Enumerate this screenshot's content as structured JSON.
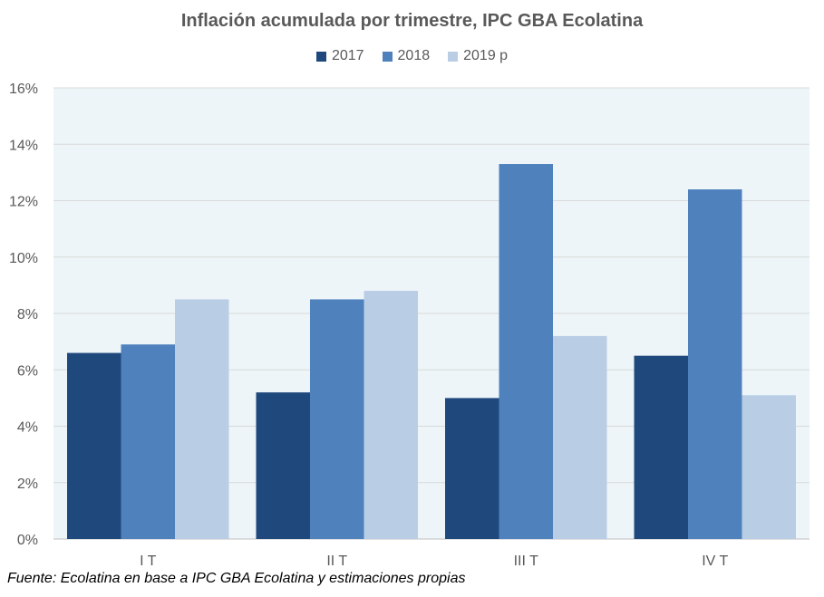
{
  "chart_data": {
    "type": "bar",
    "title": "Inflación acumulada por trimestre, IPC GBA Ecolatina",
    "xlabel": "",
    "ylabel": "",
    "categories": [
      "I T",
      "II T",
      "III T",
      "IV T"
    ],
    "series": [
      {
        "name": "2017",
        "color": "#1F497D",
        "values": [
          6.6,
          5.2,
          5.0,
          6.5
        ]
      },
      {
        "name": "2018",
        "color": "#4F81BD",
        "values": [
          6.9,
          8.5,
          13.3,
          12.4
        ]
      },
      {
        "name": "2019 p",
        "color": "#B9CDE5",
        "values": [
          8.5,
          8.8,
          7.2,
          5.1
        ]
      }
    ],
    "ylim": [
      0,
      16
    ],
    "yticks": [
      0,
      2,
      4,
      6,
      8,
      10,
      12,
      14,
      16
    ],
    "ytick_labels": [
      "0%",
      "2%",
      "4%",
      "6%",
      "8%",
      "10%",
      "12%",
      "14%",
      "16%"
    ],
    "grid": true,
    "legend_position": "top-center",
    "plot_background": "#EDF5F8",
    "gridline_color": "#D9D9D9"
  },
  "source_note": "Fuente: Ecolatina en base a IPC GBA Ecolatina y estimaciones propias"
}
